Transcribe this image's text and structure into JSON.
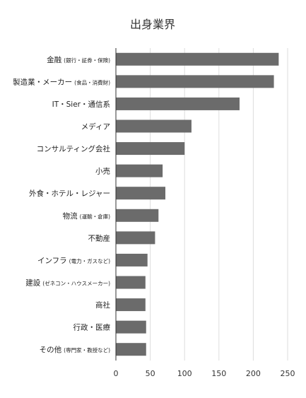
{
  "chart_data": {
    "type": "bar",
    "orientation": "horizontal",
    "title": "出身業界",
    "xlabel": "",
    "ylabel": "",
    "xlim": [
      0,
      250
    ],
    "xticks": [
      0,
      50,
      100,
      150,
      200,
      250
    ],
    "grid": "vertical",
    "bar_color": "#6b6b6b",
    "categories": [
      {
        "main": "金融",
        "note": "(銀行・証券・保険)"
      },
      {
        "main": "製造業・メーカー",
        "note": "(食品・消費財)"
      },
      {
        "main": "IT・Sier・通信系",
        "note": ""
      },
      {
        "main": "メディア",
        "note": ""
      },
      {
        "main": "コンサルティング会社",
        "note": ""
      },
      {
        "main": "小売",
        "note": ""
      },
      {
        "main": "外食・ホテル・レジャー",
        "note": ""
      },
      {
        "main": "物流",
        "note": "(運輸・倉庫)"
      },
      {
        "main": "不動産",
        "note": ""
      },
      {
        "main": "インフラ",
        "note": "(電力・ガスなど)"
      },
      {
        "main": "建設",
        "note": "(ゼネコン・ハウスメーカー)"
      },
      {
        "main": "商社",
        "note": ""
      },
      {
        "main": "行政・医療",
        "note": ""
      },
      {
        "main": "その他",
        "note": "(専門家・教授など)"
      }
    ],
    "values": [
      237,
      230,
      180,
      110,
      100,
      68,
      72,
      62,
      57,
      46,
      43,
      43,
      44,
      44
    ]
  }
}
